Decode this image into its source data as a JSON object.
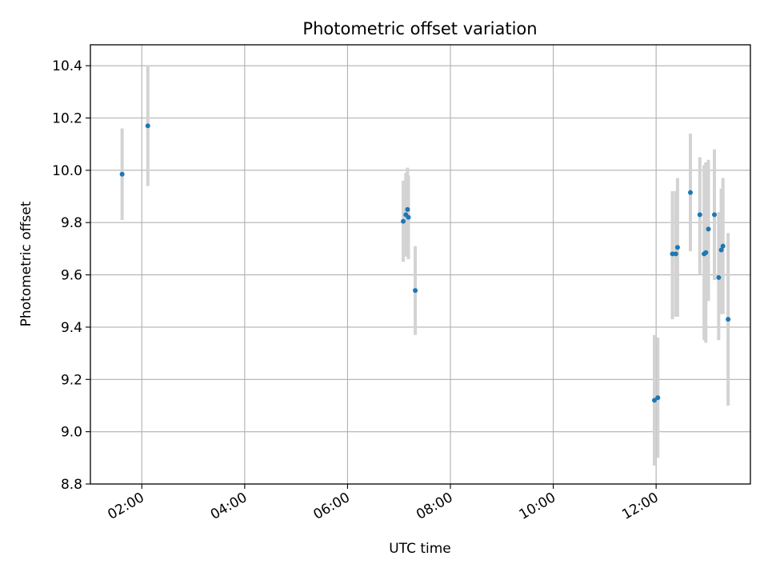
{
  "chart_data": {
    "type": "scatter",
    "title": "Photometric offset variation",
    "xlabel": "UTC time",
    "ylabel": "Photometric offset",
    "xlim": [
      "01:00",
      "13:50"
    ],
    "ylim": [
      8.8,
      10.48
    ],
    "x_ticks": [
      "02:00",
      "04:00",
      "06:00",
      "08:00",
      "10:00",
      "12:00"
    ],
    "y_ticks": [
      "8.8",
      "9.0",
      "9.2",
      "9.4",
      "9.6",
      "9.8",
      "10.0",
      "10.2",
      "10.4"
    ],
    "grid": true,
    "legend": "none",
    "colors": {
      "points": "#1f77b4",
      "error_bars": "#d3d3d3",
      "grid": "#b0b0b0"
    },
    "points": [
      {
        "x": "01:37",
        "y": 9.985,
        "lo": 9.81,
        "hi": 10.16
      },
      {
        "x": "02:07",
        "y": 10.17,
        "lo": 9.94,
        "hi": 10.4
      },
      {
        "x": "07:05",
        "y": 9.805,
        "lo": 9.65,
        "hi": 9.96
      },
      {
        "x": "07:08",
        "y": 9.83,
        "lo": 9.67,
        "hi": 9.99
      },
      {
        "x": "07:10",
        "y": 9.85,
        "lo": 9.69,
        "hi": 10.01
      },
      {
        "x": "07:11",
        "y": 9.82,
        "lo": 9.66,
        "hi": 9.98
      },
      {
        "x": "07:19",
        "y": 9.54,
        "lo": 9.37,
        "hi": 9.71
      },
      {
        "x": "11:58",
        "y": 9.12,
        "lo": 8.87,
        "hi": 9.37
      },
      {
        "x": "12:02",
        "y": 9.13,
        "lo": 8.9,
        "hi": 9.36
      },
      {
        "x": "12:19",
        "y": 9.68,
        "lo": 9.43,
        "hi": 9.92
      },
      {
        "x": "12:23",
        "y": 9.68,
        "lo": 9.44,
        "hi": 9.92
      },
      {
        "x": "12:25",
        "y": 9.705,
        "lo": 9.44,
        "hi": 9.97
      },
      {
        "x": "12:40",
        "y": 9.915,
        "lo": 9.69,
        "hi": 10.14
      },
      {
        "x": "12:51",
        "y": 9.83,
        "lo": 9.6,
        "hi": 10.05
      },
      {
        "x": "12:56",
        "y": 9.68,
        "lo": 9.35,
        "hi": 10.02
      },
      {
        "x": "12:58",
        "y": 9.685,
        "lo": 9.34,
        "hi": 10.03
      },
      {
        "x": "13:01",
        "y": 9.775,
        "lo": 9.5,
        "hi": 10.04
      },
      {
        "x": "13:08",
        "y": 9.83,
        "lo": 9.58,
        "hi": 10.08
      },
      {
        "x": "13:13",
        "y": 9.59,
        "lo": 9.35,
        "hi": 9.84
      },
      {
        "x": "13:16",
        "y": 9.695,
        "lo": 9.45,
        "hi": 9.93
      },
      {
        "x": "13:18",
        "y": 9.71,
        "lo": 9.45,
        "hi": 9.97
      },
      {
        "x": "13:24",
        "y": 9.43,
        "lo": 9.1,
        "hi": 9.76
      }
    ]
  }
}
